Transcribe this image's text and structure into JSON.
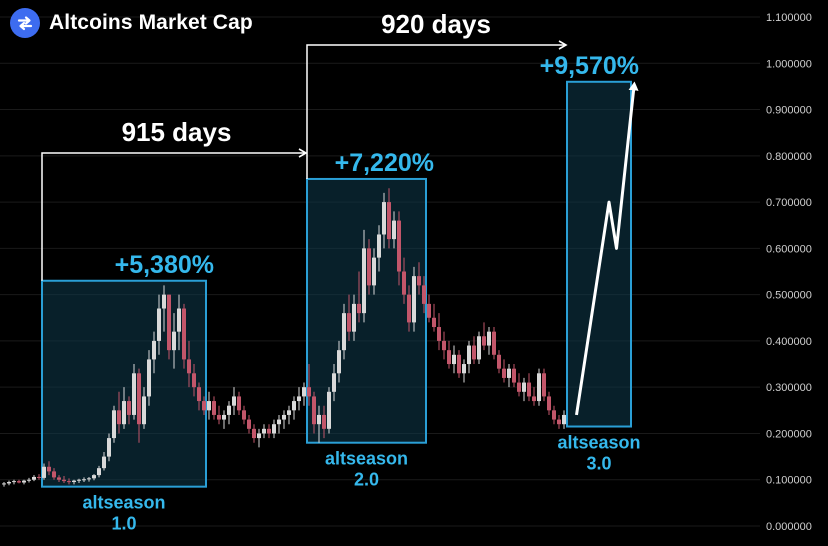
{
  "header": {
    "title": "Altcoins Market Cap",
    "logo_icon": "altcoin-logo-icon"
  },
  "colors": {
    "background": "#000000",
    "up_candle": "#d9d9d9",
    "down_candle": "#c2566a",
    "box_stroke": "#2a9fd6",
    "box_fill": "#0f3a4d",
    "accent_text": "#35b8ec",
    "arrow": "#ffffff",
    "axis_text": "#cfcfcf",
    "grid": "#1a1a1a"
  },
  "chart_data": {
    "type": "candlestick",
    "title": "Altcoins Market Cap",
    "ylim": [
      0,
      1.1
    ],
    "y_ticks": [
      "0.000000",
      "0.100000",
      "0.200000",
      "0.300000",
      "0.400000",
      "0.500000",
      "0.600000",
      "0.700000",
      "0.800000",
      "0.900000",
      "1.000000",
      "1.100000"
    ],
    "grid": true,
    "candles": [
      [
        0.09,
        0.095,
        0.085,
        0.092
      ],
      [
        0.092,
        0.098,
        0.088,
        0.095
      ],
      [
        0.095,
        0.1,
        0.09,
        0.097
      ],
      [
        0.097,
        0.1,
        0.092,
        0.094
      ],
      [
        0.094,
        0.1,
        0.09,
        0.098
      ],
      [
        0.098,
        0.104,
        0.094,
        0.1
      ],
      [
        0.1,
        0.11,
        0.097,
        0.106
      ],
      [
        0.106,
        0.112,
        0.1,
        0.104
      ],
      [
        0.104,
        0.135,
        0.1,
        0.128
      ],
      [
        0.128,
        0.14,
        0.11,
        0.118
      ],
      [
        0.118,
        0.125,
        0.1,
        0.105
      ],
      [
        0.105,
        0.11,
        0.095,
        0.1
      ],
      [
        0.1,
        0.108,
        0.093,
        0.097
      ],
      [
        0.097,
        0.103,
        0.09,
        0.095
      ],
      [
        0.095,
        0.1,
        0.09,
        0.098
      ],
      [
        0.098,
        0.102,
        0.093,
        0.1
      ],
      [
        0.1,
        0.105,
        0.095,
        0.101
      ],
      [
        0.101,
        0.106,
        0.096,
        0.103
      ],
      [
        0.103,
        0.112,
        0.099,
        0.11
      ],
      [
        0.11,
        0.13,
        0.105,
        0.125
      ],
      [
        0.125,
        0.16,
        0.12,
        0.15
      ],
      [
        0.15,
        0.2,
        0.14,
        0.19
      ],
      [
        0.19,
        0.26,
        0.18,
        0.25
      ],
      [
        0.25,
        0.29,
        0.2,
        0.22
      ],
      [
        0.22,
        0.3,
        0.21,
        0.27
      ],
      [
        0.27,
        0.28,
        0.22,
        0.24
      ],
      [
        0.24,
        0.35,
        0.23,
        0.33
      ],
      [
        0.33,
        0.34,
        0.18,
        0.22
      ],
      [
        0.22,
        0.3,
        0.21,
        0.28
      ],
      [
        0.28,
        0.38,
        0.26,
        0.36
      ],
      [
        0.36,
        0.42,
        0.33,
        0.4
      ],
      [
        0.4,
        0.5,
        0.37,
        0.47
      ],
      [
        0.47,
        0.52,
        0.42,
        0.5
      ],
      [
        0.5,
        0.5,
        0.36,
        0.38
      ],
      [
        0.38,
        0.46,
        0.34,
        0.42
      ],
      [
        0.42,
        0.5,
        0.38,
        0.47
      ],
      [
        0.47,
        0.48,
        0.34,
        0.36
      ],
      [
        0.36,
        0.4,
        0.3,
        0.33
      ],
      [
        0.33,
        0.35,
        0.28,
        0.3
      ],
      [
        0.3,
        0.31,
        0.25,
        0.27
      ],
      [
        0.27,
        0.28,
        0.24,
        0.25
      ],
      [
        0.25,
        0.29,
        0.23,
        0.27
      ],
      [
        0.27,
        0.28,
        0.23,
        0.24
      ],
      [
        0.24,
        0.26,
        0.22,
        0.23
      ],
      [
        0.23,
        0.25,
        0.21,
        0.24
      ],
      [
        0.24,
        0.27,
        0.22,
        0.26
      ],
      [
        0.26,
        0.3,
        0.24,
        0.28
      ],
      [
        0.28,
        0.29,
        0.24,
        0.25
      ],
      [
        0.25,
        0.26,
        0.22,
        0.23
      ],
      [
        0.23,
        0.24,
        0.2,
        0.21
      ],
      [
        0.21,
        0.22,
        0.18,
        0.19
      ],
      [
        0.19,
        0.21,
        0.17,
        0.2
      ],
      [
        0.2,
        0.22,
        0.19,
        0.21
      ],
      [
        0.21,
        0.22,
        0.19,
        0.2
      ],
      [
        0.2,
        0.23,
        0.19,
        0.22
      ],
      [
        0.22,
        0.24,
        0.2,
        0.23
      ],
      [
        0.23,
        0.25,
        0.21,
        0.24
      ],
      [
        0.24,
        0.26,
        0.22,
        0.25
      ],
      [
        0.25,
        0.28,
        0.23,
        0.27
      ],
      [
        0.27,
        0.3,
        0.25,
        0.28
      ],
      [
        0.28,
        0.31,
        0.26,
        0.3
      ],
      [
        0.3,
        0.35,
        0.26,
        0.28
      ],
      [
        0.28,
        0.29,
        0.2,
        0.22
      ],
      [
        0.22,
        0.26,
        0.18,
        0.24
      ],
      [
        0.24,
        0.26,
        0.19,
        0.21
      ],
      [
        0.21,
        0.3,
        0.2,
        0.29
      ],
      [
        0.29,
        0.35,
        0.27,
        0.33
      ],
      [
        0.33,
        0.4,
        0.31,
        0.38
      ],
      [
        0.38,
        0.48,
        0.36,
        0.46
      ],
      [
        0.46,
        0.5,
        0.4,
        0.42
      ],
      [
        0.42,
        0.5,
        0.4,
        0.48
      ],
      [
        0.48,
        0.55,
        0.44,
        0.46
      ],
      [
        0.46,
        0.64,
        0.44,
        0.6
      ],
      [
        0.6,
        0.62,
        0.5,
        0.52
      ],
      [
        0.52,
        0.6,
        0.5,
        0.58
      ],
      [
        0.58,
        0.65,
        0.55,
        0.63
      ],
      [
        0.63,
        0.72,
        0.6,
        0.7
      ],
      [
        0.7,
        0.73,
        0.6,
        0.62
      ],
      [
        0.62,
        0.68,
        0.6,
        0.66
      ],
      [
        0.66,
        0.68,
        0.52,
        0.55
      ],
      [
        0.55,
        0.58,
        0.48,
        0.5
      ],
      [
        0.5,
        0.52,
        0.42,
        0.44
      ],
      [
        0.44,
        0.56,
        0.42,
        0.54
      ],
      [
        0.54,
        0.57,
        0.5,
        0.52
      ],
      [
        0.52,
        0.54,
        0.46,
        0.48
      ],
      [
        0.48,
        0.5,
        0.44,
        0.45
      ],
      [
        0.45,
        0.48,
        0.42,
        0.43
      ],
      [
        0.43,
        0.46,
        0.38,
        0.4
      ],
      [
        0.4,
        0.42,
        0.36,
        0.38
      ],
      [
        0.38,
        0.4,
        0.34,
        0.35
      ],
      [
        0.35,
        0.39,
        0.33,
        0.37
      ],
      [
        0.37,
        0.38,
        0.32,
        0.33
      ],
      [
        0.33,
        0.36,
        0.31,
        0.35
      ],
      [
        0.35,
        0.4,
        0.33,
        0.39
      ],
      [
        0.39,
        0.41,
        0.35,
        0.36
      ],
      [
        0.36,
        0.42,
        0.35,
        0.41
      ],
      [
        0.41,
        0.44,
        0.38,
        0.39
      ],
      [
        0.39,
        0.43,
        0.37,
        0.42
      ],
      [
        0.42,
        0.43,
        0.36,
        0.37
      ],
      [
        0.37,
        0.38,
        0.33,
        0.34
      ],
      [
        0.34,
        0.36,
        0.31,
        0.32
      ],
      [
        0.32,
        0.35,
        0.3,
        0.34
      ],
      [
        0.34,
        0.35,
        0.3,
        0.31
      ],
      [
        0.31,
        0.33,
        0.28,
        0.29
      ],
      [
        0.29,
        0.32,
        0.27,
        0.31
      ],
      [
        0.31,
        0.33,
        0.27,
        0.28
      ],
      [
        0.28,
        0.3,
        0.26,
        0.27
      ],
      [
        0.27,
        0.34,
        0.26,
        0.33
      ],
      [
        0.33,
        0.34,
        0.27,
        0.28
      ],
      [
        0.28,
        0.29,
        0.24,
        0.25
      ],
      [
        0.25,
        0.26,
        0.22,
        0.23
      ],
      [
        0.23,
        0.24,
        0.21,
        0.22
      ],
      [
        0.22,
        0.25,
        0.21,
        0.24
      ]
    ],
    "annotations": {
      "boxes": [
        {
          "label_line1": "altseason",
          "label_line2": "1.0",
          "gain": "+5,380%",
          "x_range": [
            8,
            40
          ],
          "y_range": [
            0.085,
            0.53
          ]
        },
        {
          "label_line1": "altseason",
          "label_line2": "2.0",
          "gain": "+7,220%",
          "x_range": [
            61,
            84
          ],
          "y_range": [
            0.18,
            0.75
          ]
        },
        {
          "label_line1": "altseason",
          "label_line2": "3.0",
          "gain": "+9,570%",
          "x_range": [
            113,
            125
          ],
          "y_range": [
            0.215,
            0.96
          ]
        }
      ],
      "durations": [
        {
          "label": "915 days"
        },
        {
          "label": "920 days"
        }
      ],
      "projection": [
        [
          114.5,
          0.24
        ],
        [
          121.0,
          0.7
        ],
        [
          122.5,
          0.6
        ],
        [
          126.0,
          0.95
        ]
      ]
    }
  }
}
